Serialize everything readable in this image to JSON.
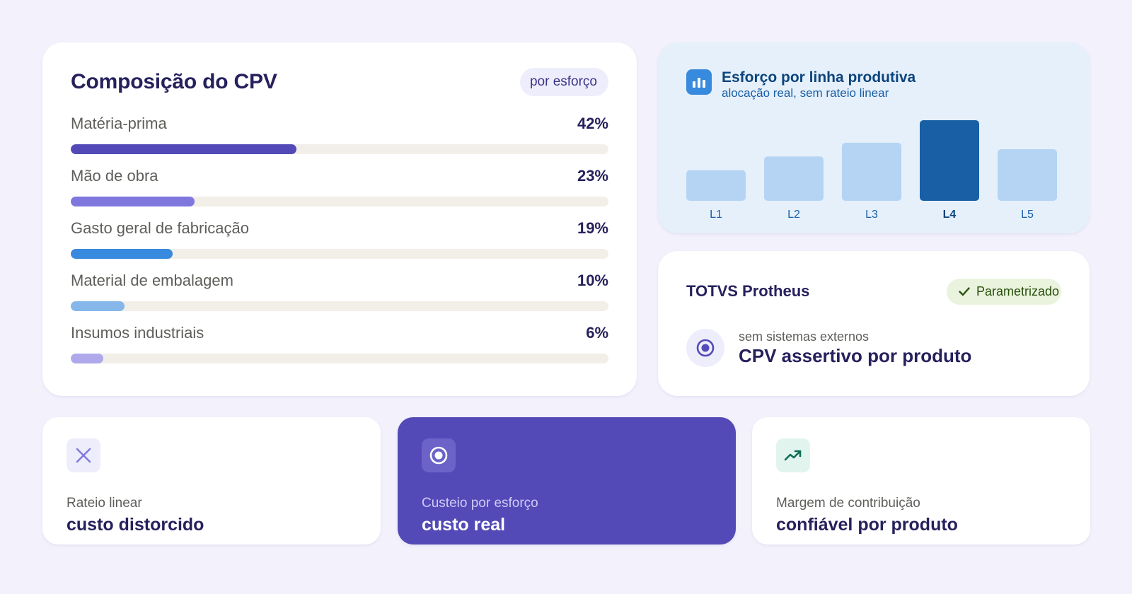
{
  "composition": {
    "title": "Composição do CPV",
    "badge": "por esforço",
    "items": [
      {
        "label": "Matéria-prima",
        "value": "42%",
        "fraction": 0.42,
        "color": "#534ab7"
      },
      {
        "label": "Mão de obra",
        "value": "23%",
        "fraction": 0.23,
        "color": "#7f77dd"
      },
      {
        "label": "Gasto geral de fabricação",
        "value": "19%",
        "fraction": 0.19,
        "color": "#378add"
      },
      {
        "label": "Material de embalagem",
        "value": "10%",
        "fraction": 0.1,
        "color": "#85b7eb"
      },
      {
        "label": "Insumos industriais",
        "value": "6%",
        "fraction": 0.06,
        "color": "#afa9ec"
      }
    ]
  },
  "effort": {
    "title": "Esforço por linha produtiva",
    "subtitle": "alocação real, sem rateio linear",
    "icon": "bar-chart-icon"
  },
  "chart_data": {
    "type": "bar",
    "categories": [
      "L1",
      "L2",
      "L3",
      "L4",
      "L5"
    ],
    "values": [
      38,
      55,
      72,
      100,
      64
    ],
    "highlight": "L4",
    "colors": {
      "default": "#b5d4f4",
      "highlight": "#185fa5"
    },
    "title": "Esforço por linha produtiva",
    "xlabel": "",
    "ylabel": "",
    "ylim": [
      0,
      100
    ],
    "grid": false
  },
  "totvs": {
    "title": "TOTVS Protheus",
    "status": "Parametrizado",
    "status_icon": "check-icon",
    "note": "sem sistemas externos",
    "claim": "CPV assertivo por produto",
    "icon": "target-icon"
  },
  "cards": [
    {
      "id": "rateio",
      "label": "Rateio linear",
      "value": "custo distorcido",
      "icon": "x-icon",
      "accent": "#7f77dd"
    },
    {
      "id": "custeio",
      "label": "Custeio por esforço",
      "value": "custo real",
      "icon": "target-icon",
      "accent": "#534ab7"
    },
    {
      "id": "margem",
      "label": "Margem de contribuição",
      "value": "confiável por produto",
      "icon": "trend-up-icon",
      "accent": "#0f6e56"
    }
  ]
}
